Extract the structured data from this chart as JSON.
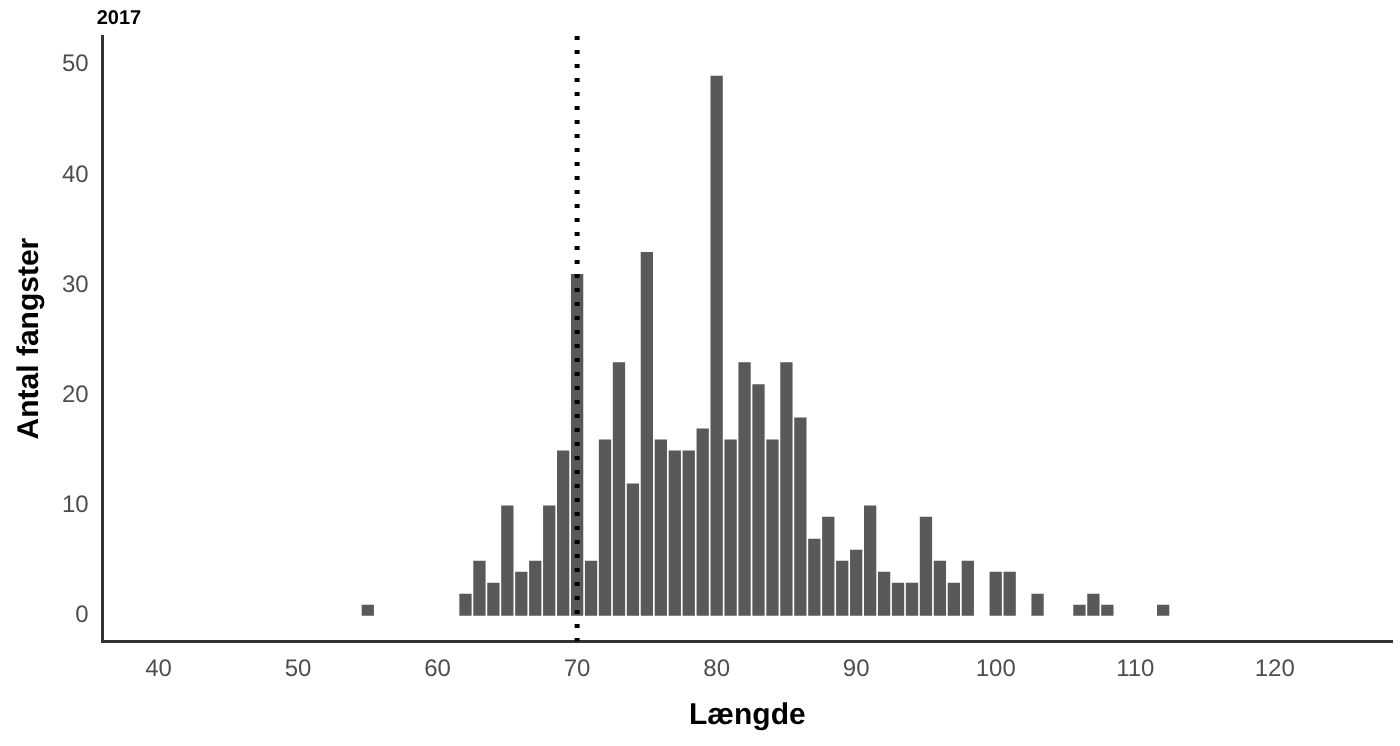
{
  "chart_data": {
    "type": "histogram",
    "title": "2017",
    "xlabel": "Længde",
    "ylabel": "Antal fangster",
    "bins": [
      54.5,
      55.5,
      56.5,
      57.5,
      58.5,
      59.5,
      60.5,
      61.5,
      62.5,
      63.5,
      64.5,
      65.5,
      66.5,
      67.5,
      68.5,
      69.5,
      70.5,
      71.5,
      72.5,
      73.5,
      74.5,
      75.5,
      76.5,
      77.5,
      78.5,
      79.5,
      80.5,
      81.5,
      82.5,
      83.5,
      84.5,
      85.5,
      86.5,
      87.5,
      88.5,
      89.5,
      90.5,
      91.5,
      92.5,
      93.5,
      94.5,
      95.5,
      96.5,
      97.5,
      98.5,
      99.5,
      100.5,
      101.5,
      102.5,
      103.5,
      104.5,
      105.5,
      106.5,
      107.5,
      108.5,
      109.5,
      110.5,
      111.5,
      112.5
    ],
    "values": [
      1,
      0,
      0,
      0,
      0,
      0,
      0,
      2,
      5,
      3,
      10,
      4,
      5,
      10,
      15,
      31,
      5,
      16,
      23,
      12,
      33,
      16,
      15,
      15,
      17,
      49,
      16,
      23,
      21,
      16,
      23,
      18,
      7,
      9,
      5,
      6,
      10,
      4,
      3,
      3,
      9,
      5,
      3,
      5,
      0,
      4,
      4,
      0,
      2,
      0,
      0,
      1,
      2,
      1,
      0,
      0,
      0,
      1
    ],
    "color": "#595959",
    "xlim": [
      36,
      128.4
    ],
    "xticks": [
      40,
      50,
      60,
      70,
      80,
      90,
      100,
      110,
      120
    ],
    "ylim": [
      -2.3,
      52.6
    ],
    "yticks": [
      0,
      10,
      20,
      30,
      40,
      50
    ],
    "grid": false,
    "legend": false,
    "ref_lines": [
      {
        "axis": "x",
        "value": 70,
        "color": "#000000",
        "line_style": "dotted"
      }
    ]
  }
}
